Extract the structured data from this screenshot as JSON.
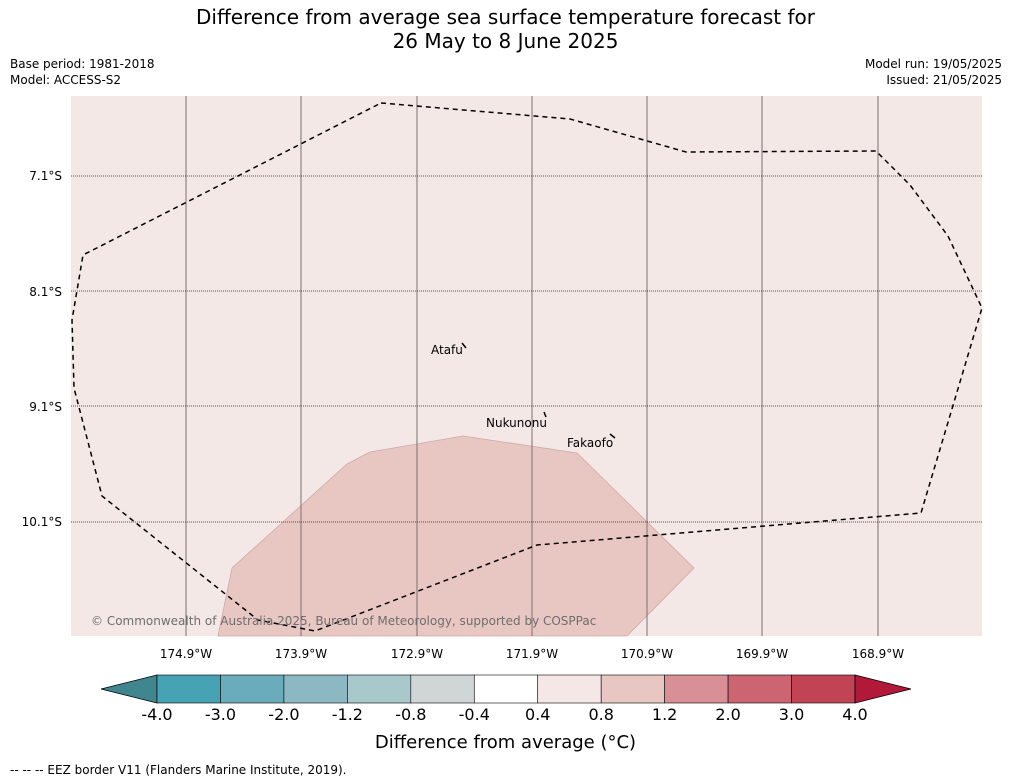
{
  "title": {
    "line1": "Difference from average sea surface temperature forecast for",
    "line2": "26 May to 8 June 2025"
  },
  "meta": {
    "base_period": "Base period: 1981-2018",
    "model": "Model: ACCESS-S2",
    "model_run": "Model run: 19/05/2025",
    "issued": "Issued: 21/05/2025"
  },
  "map": {
    "background_color": "#f4e8e7",
    "anomaly_color": "#e8c7c3",
    "lat_labels": [
      "7.1°S",
      "8.1°S",
      "9.1°S",
      "10.1°S"
    ],
    "lon_labels": [
      "174.9°W",
      "173.9°W",
      "172.9°W",
      "171.9°W",
      "170.9°W",
      "169.9°W",
      "168.9°W"
    ],
    "places": [
      {
        "name": "Atafu"
      },
      {
        "name": "Nukunonu"
      },
      {
        "name": "Fakaofo"
      }
    ],
    "copyright": "© Commonwealth of Australia 2025, Bureau of Meteorology, supported by COSPPac"
  },
  "colorbar": {
    "title": "Difference from average (°C)",
    "ticks": [
      "-4.0",
      "-3.0",
      "-2.0",
      "-1.2",
      "-0.8",
      "-0.4",
      "0.4",
      "0.8",
      "1.2",
      "2.0",
      "3.0",
      "4.0"
    ],
    "colors": [
      "#3f868f",
      "#47a3b3",
      "#6aacbb",
      "#8bb8c2",
      "#a9c8cc",
      "#d0d5d6",
      "#ffffff",
      "#f5e7e6",
      "#e8c7c3",
      "#d88f95",
      "#cc6571",
      "#c14455",
      "#b1183a"
    ]
  },
  "footer": "--  --  -- EEZ border V11 (Flanders Marine Institute, 2019)."
}
